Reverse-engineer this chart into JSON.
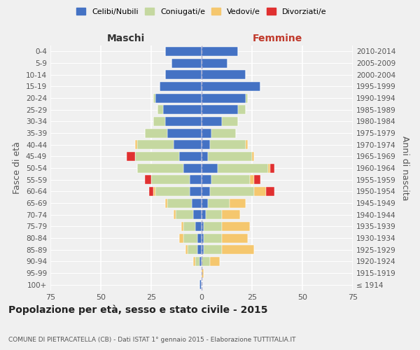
{
  "age_groups": [
    "100+",
    "95-99",
    "90-94",
    "85-89",
    "80-84",
    "75-79",
    "70-74",
    "65-69",
    "60-64",
    "55-59",
    "50-54",
    "45-49",
    "40-44",
    "35-39",
    "30-34",
    "25-29",
    "20-24",
    "15-19",
    "10-14",
    "5-9",
    "0-4"
  ],
  "birth_years": [
    "≤ 1914",
    "1915-1919",
    "1920-1924",
    "1925-1929",
    "1930-1934",
    "1935-1939",
    "1940-1944",
    "1945-1949",
    "1950-1954",
    "1955-1959",
    "1960-1964",
    "1965-1969",
    "1970-1974",
    "1975-1979",
    "1980-1984",
    "1985-1989",
    "1990-1994",
    "1995-1999",
    "2000-2004",
    "2005-2009",
    "2010-2014"
  ],
  "colors": {
    "celibe": "#4472c4",
    "coniugato": "#c5d8a0",
    "vedovo": "#f5c76e",
    "divorziato": "#e03030"
  },
  "maschi": {
    "celibe": [
      1,
      0,
      1,
      2,
      2,
      3,
      4,
      5,
      6,
      6,
      9,
      11,
      14,
      17,
      18,
      19,
      23,
      21,
      18,
      15,
      18
    ],
    "coniugato": [
      0,
      0,
      2,
      5,
      7,
      6,
      9,
      12,
      17,
      19,
      23,
      22,
      18,
      11,
      6,
      3,
      1,
      0,
      0,
      0,
      0
    ],
    "vedovo": [
      0,
      0,
      1,
      1,
      2,
      1,
      1,
      1,
      1,
      0,
      0,
      0,
      1,
      0,
      0,
      0,
      0,
      0,
      0,
      0,
      0
    ],
    "divorziato": [
      0,
      0,
      0,
      0,
      0,
      0,
      0,
      0,
      2,
      3,
      0,
      4,
      0,
      0,
      0,
      0,
      0,
      0,
      0,
      0,
      0
    ]
  },
  "femmine": {
    "nubile": [
      0,
      0,
      0,
      1,
      1,
      1,
      2,
      3,
      4,
      5,
      8,
      3,
      4,
      5,
      10,
      18,
      22,
      29,
      22,
      13,
      18
    ],
    "coniugata": [
      0,
      0,
      4,
      9,
      9,
      9,
      8,
      11,
      22,
      19,
      25,
      22,
      18,
      12,
      8,
      4,
      1,
      0,
      0,
      0,
      0
    ],
    "vedova": [
      0,
      1,
      5,
      16,
      13,
      14,
      9,
      8,
      6,
      2,
      1,
      1,
      1,
      0,
      0,
      0,
      0,
      0,
      0,
      0,
      0
    ],
    "divorziata": [
      0,
      0,
      0,
      0,
      0,
      0,
      0,
      0,
      4,
      3,
      2,
      0,
      0,
      0,
      0,
      0,
      0,
      0,
      0,
      0,
      0
    ]
  },
  "xlim": 75,
  "title": "Popolazione per età, sesso e stato civile - 2015",
  "subtitle": "COMUNE DI PIETRACATELLA (CB) - Dati ISTAT 1° gennaio 2015 - Elaborazione TUTTITALIA.IT",
  "ylabel_left": "Fasce di età",
  "ylabel_right": "Anni di nascita",
  "xlabel_left": "Maschi",
  "xlabel_right": "Femmine",
  "background_color": "#f0f0f0",
  "grid_color": "#ffffff",
  "bar_height": 0.78
}
